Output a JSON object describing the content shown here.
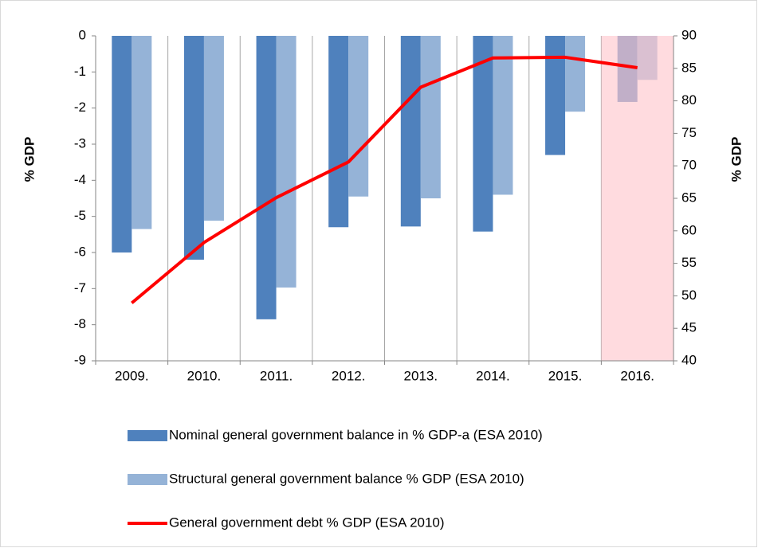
{
  "chart_data": {
    "type": "bar_line",
    "categories": [
      "2009.",
      "2010.",
      "2011.",
      "2012.",
      "2013.",
      "2014.",
      "2015.",
      "2016."
    ],
    "series": [
      {
        "name": "Nominal general government balance in % GDP-a (ESA 2010)",
        "color": "#4f81bd",
        "values": [
          -6.0,
          -6.2,
          -7.85,
          -5.3,
          -5.28,
          -5.42,
          -3.3,
          -1.83
        ]
      },
      {
        "name": "Structural general government balance % GDP (ESA 2010)",
        "color": "#95b3d7",
        "values": [
          -5.35,
          -5.12,
          -6.97,
          -4.45,
          -4.5,
          -4.4,
          -2.1,
          -1.22
        ]
      },
      {
        "name": "General government debt % GDP (ESA 2010)",
        "color": "#ff0000",
        "type": "line",
        "axis": "y2",
        "values": [
          48.9,
          58.2,
          65.1,
          70.6,
          82.1,
          86.6,
          86.7,
          85.1
        ]
      }
    ],
    "ylabel": "% GDP",
    "y2label": "% GDP",
    "ylim": [
      -9,
      0
    ],
    "yticks": [
      0,
      -1,
      -2,
      -3,
      -4,
      -5,
      -6,
      -7,
      -8,
      -9
    ],
    "y2lim": [
      40,
      90
    ],
    "y2ticks": [
      90,
      85,
      80,
      75,
      70,
      65,
      60,
      55,
      50,
      45,
      40
    ],
    "highlight_color": "#ffc7ce"
  }
}
